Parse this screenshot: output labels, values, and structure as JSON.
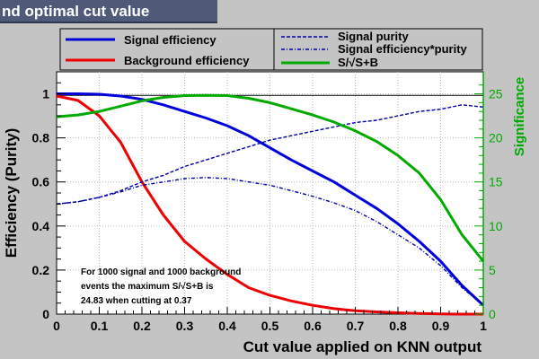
{
  "title": "nd optimal cut value",
  "chart_data": {
    "type": "line",
    "title": "nd optimal cut value",
    "xlabel": "Cut value applied on KNN output",
    "ylabel": "Efficiency (Purity)",
    "y2label": "Significance",
    "xlim": [
      0,
      1
    ],
    "ylim": [
      0,
      1.1
    ],
    "y2lim": [
      0,
      27.5
    ],
    "x_ticks": [
      "0",
      "0.1",
      "0.2",
      "0.3",
      "0.4",
      "0.5",
      "0.6",
      "0.7",
      "0.8",
      "0.9",
      "1"
    ],
    "y_ticks": [
      "0",
      "0.2",
      "0.4",
      "0.6",
      "0.8",
      "1"
    ],
    "y2_ticks": [
      "0",
      "5",
      "10",
      "15",
      "20",
      "25"
    ],
    "grid": true,
    "x": [
      0,
      0.05,
      0.1,
      0.15,
      0.2,
      0.25,
      0.3,
      0.35,
      0.4,
      0.45,
      0.5,
      0.55,
      0.6,
      0.65,
      0.7,
      0.75,
      0.8,
      0.85,
      0.9,
      0.95,
      1.0
    ],
    "series": [
      {
        "name": "Signal efficiency",
        "axis": "left",
        "color": "#0000dd",
        "style": "solid",
        "values": [
          1.0,
          1.0,
          0.998,
          0.99,
          0.975,
          0.95,
          0.92,
          0.89,
          0.855,
          0.81,
          0.755,
          0.7,
          0.65,
          0.6,
          0.54,
          0.48,
          0.41,
          0.33,
          0.24,
          0.13,
          0.04
        ]
      },
      {
        "name": "Background efficiency",
        "axis": "left",
        "color": "#ee0000",
        "style": "solid",
        "values": [
          0.99,
          0.97,
          0.9,
          0.78,
          0.6,
          0.45,
          0.33,
          0.25,
          0.18,
          0.12,
          0.085,
          0.06,
          0.04,
          0.025,
          0.015,
          0.01,
          0.006,
          0.003,
          0.001,
          0.0,
          0.0
        ]
      },
      {
        "name": "Signal purity",
        "axis": "left",
        "color": "#0000aa",
        "style": "dash",
        "values": [
          0.5,
          0.51,
          0.53,
          0.56,
          0.6,
          0.63,
          0.67,
          0.7,
          0.73,
          0.76,
          0.79,
          0.81,
          0.83,
          0.85,
          0.87,
          0.88,
          0.9,
          0.92,
          0.93,
          0.95,
          0.94
        ]
      },
      {
        "name": "Signal efficiency*purity",
        "axis": "left",
        "color": "#0000aa",
        "style": "dashdot",
        "values": [
          0.5,
          0.51,
          0.53,
          0.555,
          0.585,
          0.6,
          0.615,
          0.62,
          0.615,
          0.6,
          0.585,
          0.56,
          0.535,
          0.505,
          0.47,
          0.42,
          0.36,
          0.3,
          0.22,
          0.12,
          0.04
        ]
      },
      {
        "name": "S/√S+B",
        "axis": "right",
        "color": "#00aa00",
        "style": "solid",
        "values": [
          22.4,
          22.6,
          23.0,
          23.6,
          24.2,
          24.6,
          24.8,
          24.83,
          24.8,
          24.5,
          24.0,
          23.3,
          22.6,
          21.8,
          20.8,
          19.6,
          18.0,
          16.0,
          13.0,
          9.0,
          6.0
        ]
      }
    ],
    "annotation": {
      "line1": "For 1000 signal and 1000 background",
      "line2": "events the maximum S/√S+B  is",
      "line3": "24.83 when cutting at 0.37"
    },
    "legend": {
      "left": [
        "Signal efficiency",
        "Background efficiency"
      ],
      "right": [
        "Signal purity",
        "Signal efficiency*purity",
        "S/√S+B"
      ]
    },
    "colors": {
      "axis_right": "#00aa00",
      "max_line": "#000000",
      "plot_bg": "#ffffff"
    }
  }
}
